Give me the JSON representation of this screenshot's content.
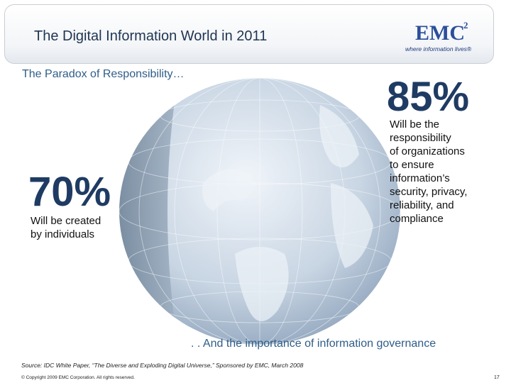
{
  "slide": {
    "title": "The Digital Information World in 2011",
    "subtitle": "The Paradox of Responsibility…",
    "logo": {
      "mark": "EMC",
      "superscript": "2",
      "tagline": "where information lives®"
    },
    "stats": [
      {
        "value": "70%",
        "text_lines": [
          "Will be created",
          "by individuals"
        ]
      },
      {
        "value": "85%",
        "text_lines": [
          "Will be the",
          "responsibility",
          "of organizations",
          "to ensure",
          "information’s",
          "security, privacy,",
          "reliability, and",
          "compliance"
        ]
      }
    ],
    "footer_note": ". . And the importance of information governance",
    "source": "Source: IDC White Paper, “The Diverse and Exploding Digital Universe,” Sponsored by EMC, March 2008",
    "copyright": "© Copyright 2009 EMC Corporation. All rights reserved.",
    "page_number": "17"
  },
  "colors": {
    "title": "#1f3552",
    "accent_text": "#2f5d88",
    "stat_numbers": "#1f3b63",
    "brand": "#2b4f9b",
    "globe_light": "#dde6f0",
    "globe_dark": "#8ea4bd"
  },
  "icons": {
    "globe": "globe-icon",
    "logo": "emc-logo"
  }
}
